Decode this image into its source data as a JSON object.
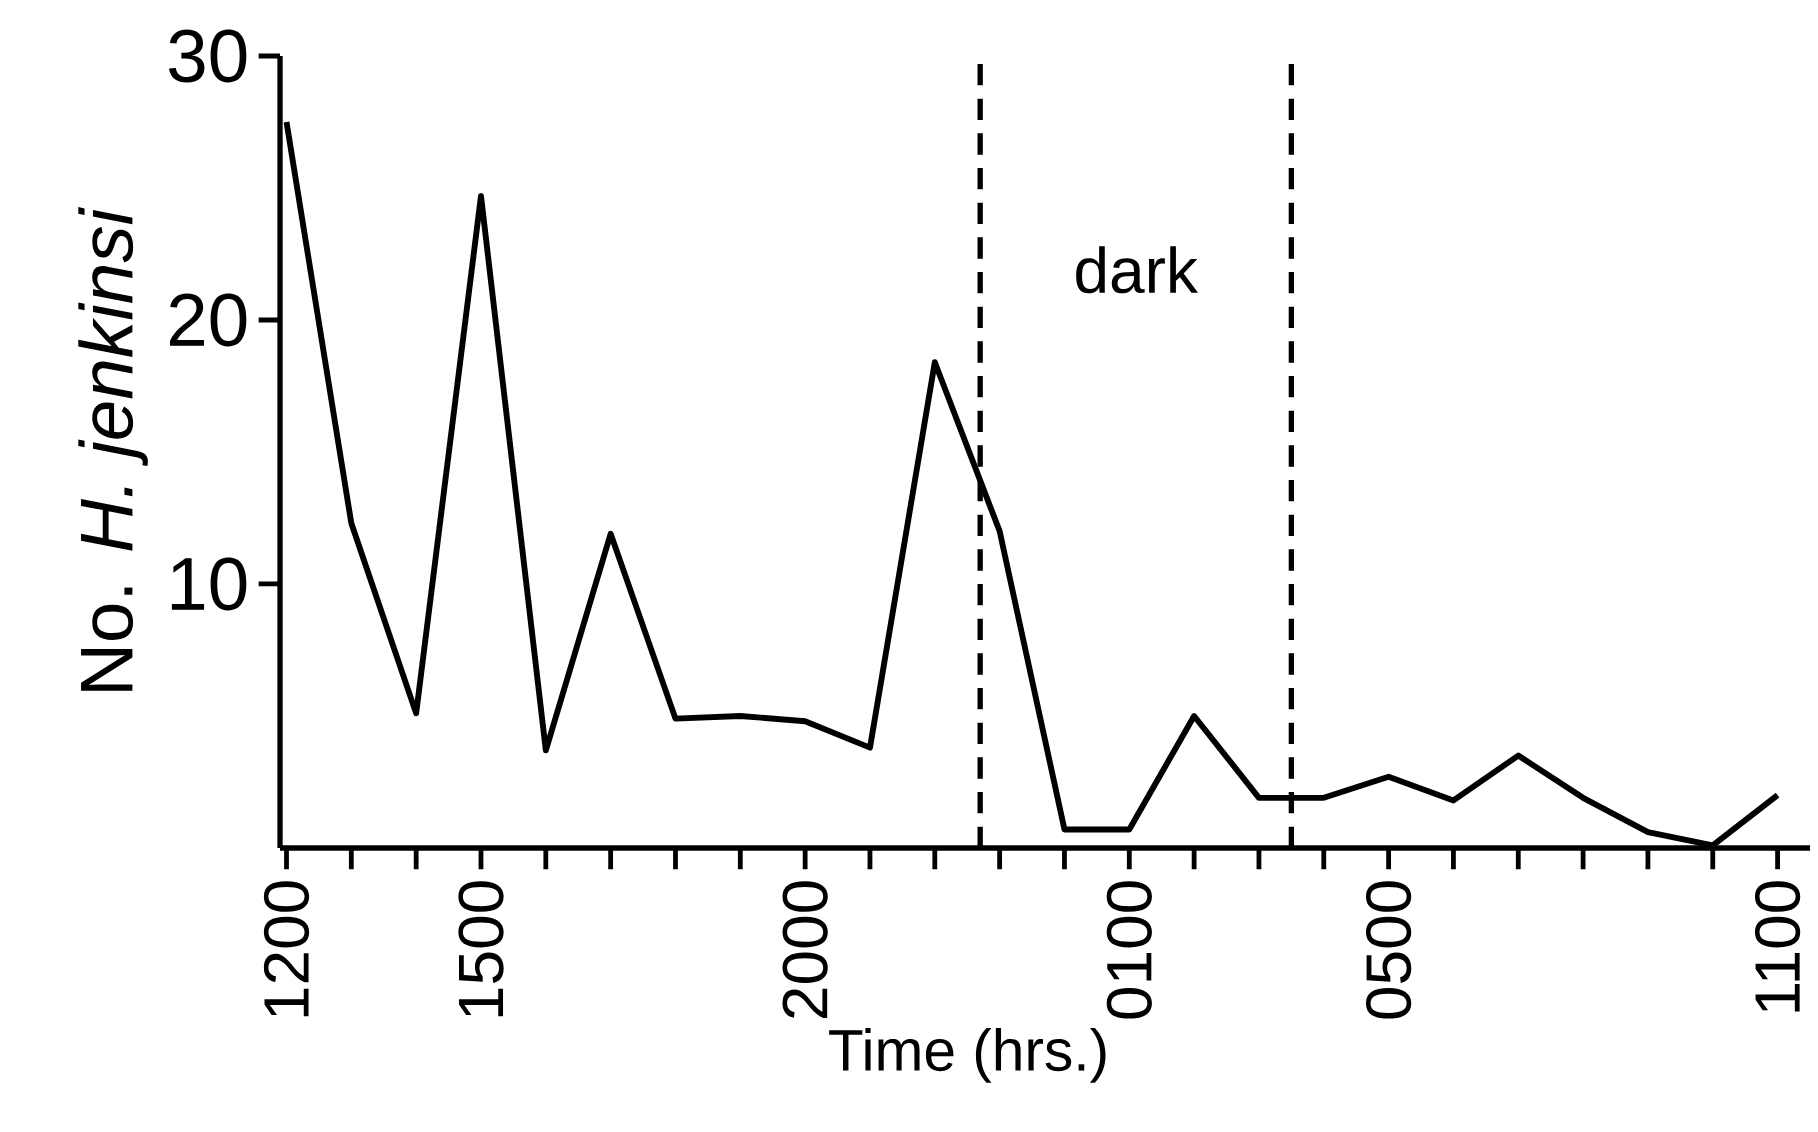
{
  "chart_data": {
    "type": "line",
    "xlabel": "Time (hrs.)",
    "ylabel": "No. *H. jenkinsi*",
    "categories": [
      "1200",
      null,
      null,
      "1500",
      null,
      null,
      null,
      null,
      "2000",
      null,
      null,
      null,
      null,
      "0100",
      null,
      null,
      null,
      "0500",
      null,
      null,
      null,
      null,
      null,
      "1100"
    ],
    "values": [
      27.5,
      12.3,
      5.1,
      24.7,
      3.7,
      11.9,
      4.9,
      5.0,
      4.8,
      3.8,
      18.4,
      12,
      0.7,
      0.7,
      5.0,
      1.9,
      1.9,
      2.7,
      1.8,
      3.5,
      1.9,
      0.6,
      0.1,
      2.0
    ],
    "color": "#000000",
    "line_style": "solid",
    "ylim": [
      0,
      30
    ],
    "yticks": [
      10,
      20,
      30
    ],
    "annotations": [
      "dark"
    ]
  }
}
